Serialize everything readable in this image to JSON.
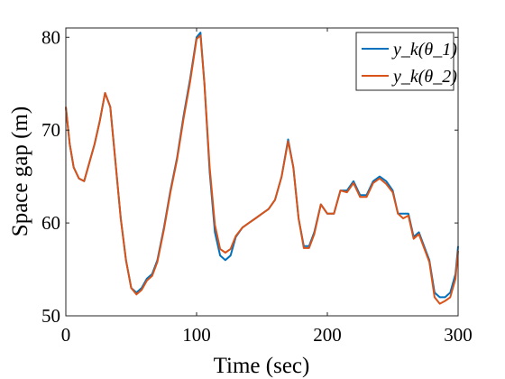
{
  "chart_data": {
    "type": "line",
    "title": "",
    "xlabel": "Time (sec)",
    "ylabel": "Space gap (m)",
    "xlim": [
      0,
      300
    ],
    "ylim": [
      50,
      81
    ],
    "xticks": [
      0,
      100,
      200,
      300
    ],
    "yticks": [
      50,
      60,
      70,
      80
    ],
    "grid": false,
    "legend_position": "top-right",
    "series": [
      {
        "name": "y_k(θ_1)",
        "color": "#0072BD",
        "x": [
          0,
          3,
          6,
          10,
          14,
          18,
          22,
          26,
          30,
          34,
          38,
          42,
          46,
          50,
          54,
          58,
          62,
          66,
          70,
          75,
          80,
          85,
          90,
          95,
          100,
          103,
          106,
          110,
          114,
          118,
          122,
          126,
          130,
          135,
          140,
          145,
          150,
          155,
          160,
          165,
          170,
          174,
          178,
          182,
          186,
          190,
          195,
          200,
          205,
          210,
          215,
          220,
          225,
          230,
          235,
          240,
          245,
          250,
          254,
          258,
          262,
          266,
          270,
          274,
          278,
          282,
          286,
          290,
          294,
          298,
          300
        ],
        "y": [
          72.5,
          68.5,
          66.0,
          64.8,
          64.5,
          66.5,
          68.5,
          71.0,
          74.0,
          72.5,
          66.5,
          60.5,
          56.0,
          53.0,
          52.5,
          53.0,
          54.0,
          54.5,
          56.0,
          59.5,
          63.5,
          67.0,
          71.5,
          75.5,
          80.0,
          80.5,
          75.0,
          65.5,
          59.0,
          56.5,
          56.0,
          56.5,
          58.5,
          59.5,
          60.0,
          60.5,
          61.0,
          61.5,
          62.5,
          65.0,
          69.0,
          66.0,
          60.5,
          57.5,
          57.5,
          59.0,
          62.0,
          61.0,
          61.0,
          63.5,
          63.5,
          64.5,
          63.0,
          63.0,
          64.5,
          65.0,
          64.5,
          63.5,
          61.0,
          61.0,
          61.0,
          58.5,
          59.0,
          57.5,
          56.0,
          52.5,
          52.0,
          52.0,
          52.5,
          54.5,
          57.5
        ]
      },
      {
        "name": "y_k(θ_2)",
        "color": "#D95319",
        "x": [
          0,
          3,
          6,
          10,
          14,
          18,
          22,
          26,
          30,
          34,
          38,
          42,
          46,
          50,
          54,
          58,
          62,
          66,
          70,
          75,
          80,
          85,
          90,
          95,
          100,
          103,
          106,
          110,
          114,
          118,
          122,
          126,
          130,
          135,
          140,
          145,
          150,
          155,
          160,
          165,
          170,
          174,
          178,
          182,
          186,
          190,
          195,
          200,
          205,
          210,
          215,
          220,
          225,
          230,
          235,
          240,
          245,
          250,
          254,
          258,
          262,
          266,
          270,
          274,
          278,
          282,
          286,
          290,
          294,
          298,
          300
        ],
        "y": [
          72.5,
          68.5,
          66.0,
          64.8,
          64.5,
          66.5,
          68.5,
          71.0,
          74.0,
          72.5,
          66.5,
          60.5,
          56.0,
          53.0,
          52.3,
          52.8,
          53.8,
          54.3,
          55.8,
          59.3,
          63.3,
          66.8,
          71.2,
          75.2,
          79.8,
          80.2,
          75.0,
          66.0,
          59.8,
          57.2,
          56.8,
          57.2,
          58.6,
          59.5,
          60.0,
          60.5,
          61.0,
          61.5,
          62.5,
          65.0,
          68.8,
          66.0,
          60.5,
          57.3,
          57.3,
          58.8,
          62.0,
          61.0,
          61.0,
          63.5,
          63.3,
          64.3,
          62.8,
          62.8,
          64.3,
          64.8,
          64.2,
          63.3,
          61.0,
          60.5,
          60.8,
          58.3,
          58.8,
          57.3,
          55.8,
          52.0,
          51.3,
          51.6,
          52.0,
          54.0,
          57.0
        ]
      }
    ]
  }
}
